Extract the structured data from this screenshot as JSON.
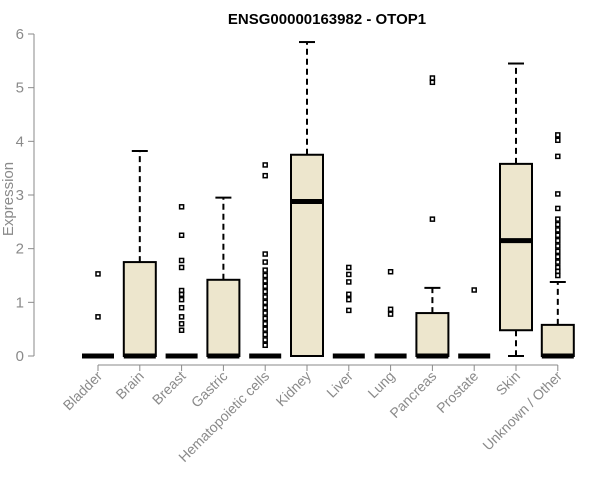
{
  "chart_data": {
    "type": "box",
    "title": "ENSG00000163982 - OTOP1",
    "ylabel": "Expression",
    "ylim": [
      0,
      6
    ],
    "yticks": [
      0,
      1,
      2,
      3,
      4,
      5,
      6
    ],
    "categories": [
      "Bladder",
      "Brain",
      "Breast",
      "Gastric",
      "Hematopoietic cells",
      "Kidney",
      "Liver",
      "Lung",
      "Pancreas",
      "Prostate",
      "Skin",
      "Unknown / Other"
    ],
    "boxes": [
      {
        "q1": 0,
        "median": 0,
        "q3": 0,
        "whisker_low": 0,
        "whisker_high": 0,
        "outliers": [
          0.73,
          1.53
        ]
      },
      {
        "q1": 0,
        "median": 0,
        "q3": 1.75,
        "whisker_low": 0,
        "whisker_high": 3.82,
        "outliers": []
      },
      {
        "q1": 0,
        "median": 0,
        "q3": 0,
        "whisker_low": 0,
        "whisker_high": 0,
        "outliers": [
          0.48,
          0.6,
          0.73,
          0.9,
          1.05,
          1.15,
          1.22,
          1.65,
          1.78,
          2.25,
          2.78
        ]
      },
      {
        "q1": 0,
        "median": 0,
        "q3": 1.42,
        "whisker_low": 0,
        "whisker_high": 2.95,
        "outliers": []
      },
      {
        "q1": 0,
        "median": 0,
        "q3": 0,
        "whisker_low": 0,
        "whisker_high": 0,
        "outliers": [
          0.2,
          0.3,
          0.4,
          0.5,
          0.6,
          0.7,
          0.8,
          0.9,
          1.0,
          1.1,
          1.2,
          1.3,
          1.4,
          1.5,
          1.6,
          1.75,
          1.9,
          3.36,
          3.56
        ]
      },
      {
        "q1": 0,
        "median": 2.88,
        "q3": 3.75,
        "whisker_low": 0,
        "whisker_high": 5.85,
        "outliers": []
      },
      {
        "q1": 0,
        "median": 0,
        "q3": 0,
        "whisker_low": 0,
        "whisker_high": 0,
        "outliers": [
          0.85,
          1.05,
          1.15,
          1.38,
          1.52,
          1.65
        ]
      },
      {
        "q1": 0,
        "median": 0,
        "q3": 0,
        "whisker_low": 0,
        "whisker_high": 0,
        "outliers": [
          0.78,
          0.87,
          1.57
        ]
      },
      {
        "q1": 0,
        "median": 0,
        "q3": 0.8,
        "whisker_low": 0,
        "whisker_high": 1.27,
        "outliers": [
          2.55,
          5.1,
          5.18
        ]
      },
      {
        "q1": 0,
        "median": 0,
        "q3": 0,
        "whisker_low": 0,
        "whisker_high": 0,
        "outliers": [
          1.23
        ]
      },
      {
        "q1": 0.48,
        "median": 2.15,
        "q3": 3.58,
        "whisker_low": 0,
        "whisker_high": 5.45,
        "outliers": []
      },
      {
        "q1": 0,
        "median": 0,
        "q3": 0.58,
        "whisker_low": 0,
        "whisker_high": 1.38,
        "outliers": [
          1.5,
          1.58,
          1.65,
          1.75,
          1.85,
          1.95,
          2.05,
          2.15,
          2.25,
          2.35,
          2.45,
          2.55,
          2.75,
          3.02,
          3.72,
          4.02,
          4.12
        ]
      }
    ],
    "grid": false,
    "legend": "none",
    "box_fill": "#ede6cd",
    "axis_color": "#8a8a8a"
  }
}
